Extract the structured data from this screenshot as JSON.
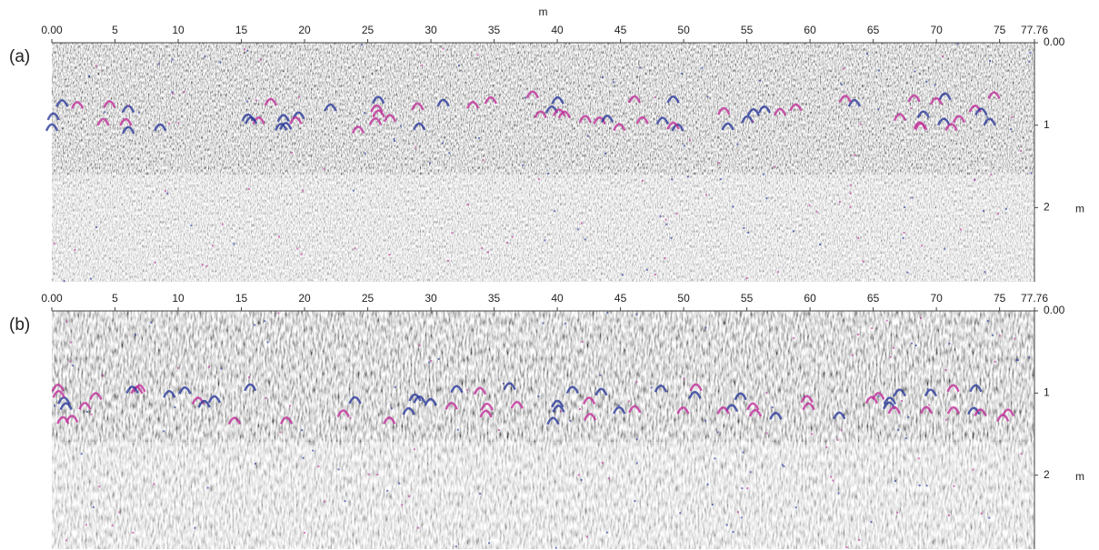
{
  "chart_data": [
    {
      "type": "radargram",
      "title": "(a)",
      "xlabel": "m",
      "ylabel": "m",
      "xlim": [
        0,
        77.76
      ],
      "xticks": [
        {
          "value": 0,
          "label": "0.00"
        },
        5,
        10,
        15,
        20,
        25,
        30,
        35,
        40,
        45,
        50,
        55,
        60,
        65,
        70,
        75,
        77.76
      ],
      "ylim": [
        0,
        2.9
      ],
      "yticks": [
        {
          "value": 0,
          "label": "0.00"
        },
        1,
        2
      ]
    },
    {
      "type": "radargram",
      "title": "(b)",
      "ylabel": "m",
      "xlim": [
        0,
        77.76
      ],
      "xticks": [
        {
          "value": 0,
          "label": "0.00"
        },
        5,
        10,
        15,
        20,
        25,
        30,
        35,
        40,
        45,
        50,
        55,
        60,
        65,
        70,
        75,
        77.76
      ],
      "ylim": [
        0,
        2.9
      ],
      "yticks": [
        {
          "value": 0,
          "label": "0.00"
        },
        1,
        2
      ]
    }
  ]
}
